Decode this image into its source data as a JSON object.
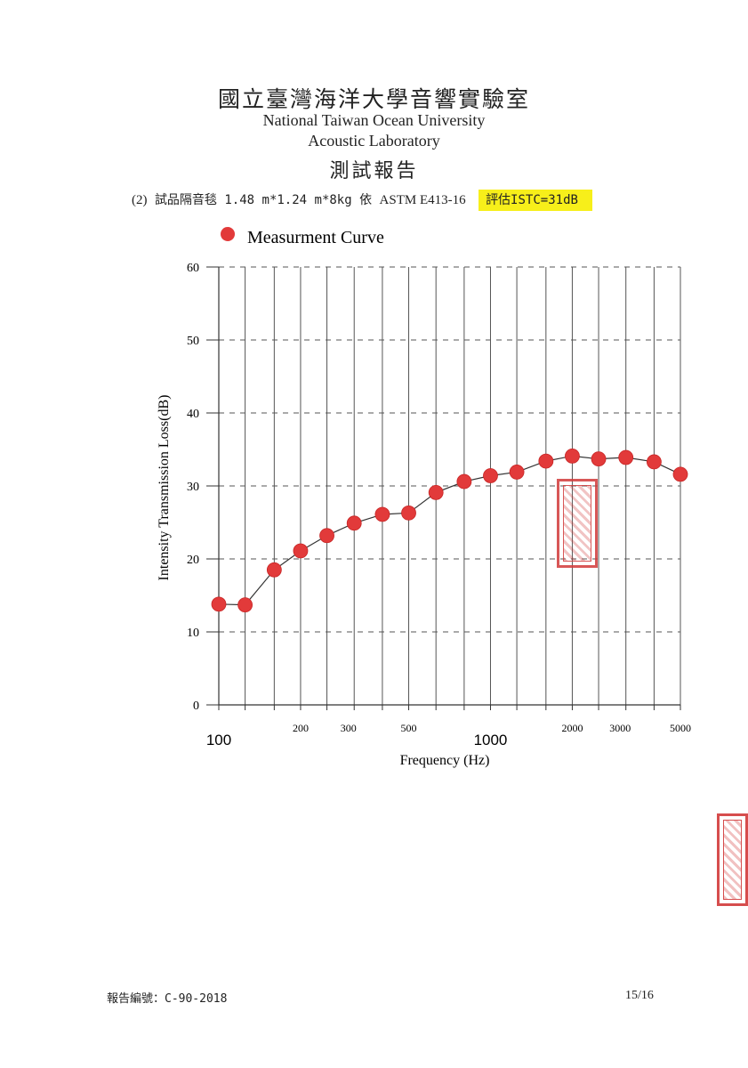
{
  "header": {
    "title_zh": "國立臺灣海洋大學音響實驗室",
    "title_en_line1": "National Taiwan Ocean University",
    "title_en_line2": "Acoustic Laboratory",
    "report_title": "測試報告"
  },
  "spec": {
    "item_no": "(2)",
    "description": "試品隔音毯 1.48 m*1.24 m*8kg 依",
    "standard": "ASTM E413-16",
    "rating": "評估ISTC=31dB",
    "rating_highlight_color": "#f7ef1a"
  },
  "footer": {
    "report_no": "報告編號：C-90-2018",
    "page": "15/16"
  },
  "chart_data": {
    "type": "line",
    "legend": {
      "label": "Measurment Curve",
      "placement": "top-left"
    },
    "xlabel": "Frequency (Hz)",
    "ylabel": "Intensity Transmission Loss(dB)",
    "x_scale": "log",
    "xlim": [
      100,
      5000
    ],
    "ylim": [
      0,
      60
    ],
    "y_ticks": [
      0,
      10,
      20,
      30,
      40,
      50,
      60
    ],
    "x_tick_labels_small": [
      "200",
      "300",
      "500",
      "2000",
      "3000",
      "5000"
    ],
    "x_tick_labels_big": [
      "100",
      "1000"
    ],
    "grid": {
      "vertical": "solid",
      "horizontal": "dashed"
    },
    "marker_color": "#e23a3a",
    "series": [
      {
        "name": "Measurment Curve",
        "x": [
          100,
          125,
          160,
          200,
          250,
          315,
          400,
          500,
          630,
          800,
          1000,
          1250,
          1600,
          2000,
          2500,
          3150,
          4000,
          5000
        ],
        "values": [
          13.8,
          13.7,
          18.5,
          21.1,
          23.2,
          24.9,
          26.1,
          26.3,
          29.1,
          30.6,
          31.4,
          31.9,
          33.4,
          34.1,
          33.7,
          33.9,
          33.3,
          31.6
        ]
      }
    ]
  }
}
